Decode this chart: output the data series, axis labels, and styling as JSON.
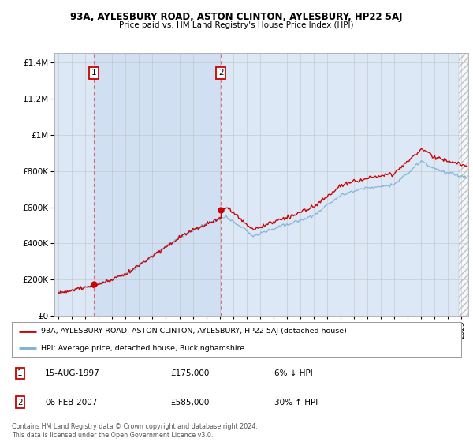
{
  "title1": "93A, AYLESBURY ROAD, ASTON CLINTON, AYLESBURY, HP22 5AJ",
  "title2": "Price paid vs. HM Land Registry's House Price Index (HPI)",
  "legend_line1": "93A, AYLESBURY ROAD, ASTON CLINTON, AYLESBURY, HP22 5AJ (detached house)",
  "legend_line2": "HPI: Average price, detached house, Buckinghamshire",
  "transaction1_date": "15-AUG-1997",
  "transaction1_price": "£175,000",
  "transaction1_hpi": "6% ↓ HPI",
  "transaction2_date": "06-FEB-2007",
  "transaction2_price": "£585,000",
  "transaction2_hpi": "30% ↑ HPI",
  "footer": "Contains HM Land Registry data © Crown copyright and database right 2024.\nThis data is licensed under the Open Government Licence v3.0.",
  "red_color": "#cc0000",
  "blue_color": "#7aafd4",
  "bg_color": "#ffffff",
  "plot_bg_color": "#dce8f5",
  "grid_color": "#bbbbbb",
  "ylim": [
    0,
    1450000
  ],
  "yticks": [
    0,
    200000,
    400000,
    600000,
    800000,
    1000000,
    1200000,
    1400000
  ],
  "xlim_start": 1994.7,
  "xlim_end": 2025.5,
  "transaction1_x": 1997.62,
  "transaction1_y": 175000,
  "transaction2_x": 2007.09,
  "transaction2_y": 585000
}
